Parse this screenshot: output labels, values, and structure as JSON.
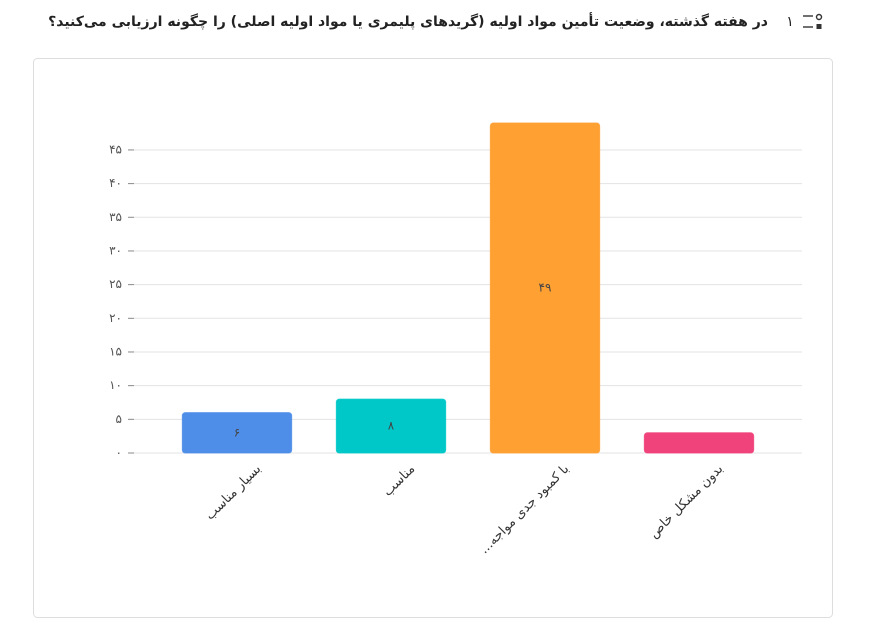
{
  "question_number": "۱",
  "chart_data": {
    "type": "bar",
    "title": "در هفته گذشته، وضعیت تأمین مواد اولیه (گریدهای پلیمری یا مواد اولیه اصلی) را چگونه ارزیابی می‌کنید؟",
    "categories": [
      "بسیار مناسب",
      "مناسب",
      "با کمبود جدی مواجه...",
      "بدون مشکل خاص"
    ],
    "values": [
      6,
      8,
      49,
      3
    ],
    "value_labels": [
      "۶",
      "۸",
      "۴۹",
      null
    ],
    "colors": [
      "#4e8ee9",
      "#00c8c8",
      "#ffa033",
      "#f0437c"
    ],
    "ylim": [
      0,
      49
    ],
    "yticks": [
      {
        "value": 0,
        "label": "۰"
      },
      {
        "value": 5,
        "label": "۵"
      },
      {
        "value": 10,
        "label": "۱۰"
      },
      {
        "value": 15,
        "label": "۱۵"
      },
      {
        "value": 20,
        "label": "۲۰"
      },
      {
        "value": 25,
        "label": "۲۵"
      },
      {
        "value": 30,
        "label": "۳۰"
      },
      {
        "value": 35,
        "label": "۳۵"
      },
      {
        "value": 40,
        "label": "۴۰"
      },
      {
        "value": 45,
        "label": "۴۵"
      }
    ],
    "grid": true
  }
}
